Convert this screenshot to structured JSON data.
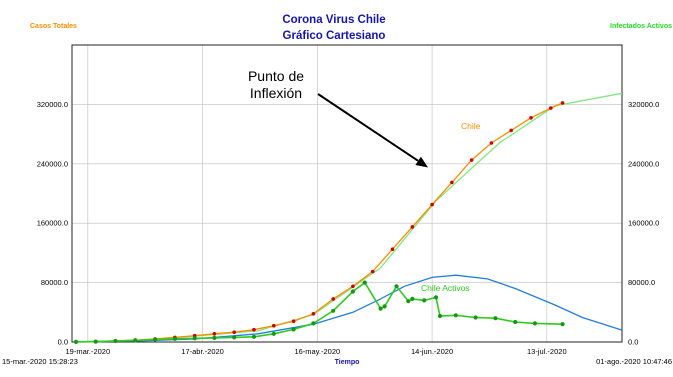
{
  "chart_data": {
    "type": "line",
    "title": "Corona Virus Chile",
    "subtitle": "Gráfico Cartesiano",
    "left_axis_label": "Casos Totales",
    "right_axis_label": "Infectados Activos",
    "xlabel": "Tiempo",
    "start_stamp": "15-mar.-2020 15:28:23",
    "end_stamp": "01-ago.-2020 10:47:46",
    "x_range": [
      "2020-03-15",
      "2020-08-01"
    ],
    "ylim": [
      0,
      400000
    ],
    "y_ticks": [
      0,
      80000,
      160000,
      240000,
      320000
    ],
    "y_tick_labels": [
      "0.0",
      "80000.0",
      "160000.0",
      "240000.0",
      "320000.0"
    ],
    "x_ticks": [
      "2020-03-19",
      "2020-04-17",
      "2020-05-16",
      "2020-06-14",
      "2020-07-13"
    ],
    "x_tick_labels": [
      "19-mar.-2020",
      "17-abr.-2020",
      "16-may.-2020",
      "14-jun.-2020",
      "13-jul.-2020"
    ],
    "grid": true,
    "annotation": {
      "text_lines": [
        "Punto de",
        "Inflexión"
      ],
      "arrow_target": {
        "date": "2020-06-13",
        "value": 235000
      }
    },
    "series": [
      {
        "name": "Chile",
        "color": "#ff8c00",
        "marker_color": "#d20000",
        "dates": [
          "2020-03-16",
          "2020-03-21",
          "2020-03-26",
          "2020-03-31",
          "2020-04-05",
          "2020-04-10",
          "2020-04-15",
          "2020-04-20",
          "2020-04-25",
          "2020-04-30",
          "2020-05-05",
          "2020-05-10",
          "2020-05-15",
          "2020-05-20",
          "2020-05-25",
          "2020-05-30",
          "2020-06-04",
          "2020-06-09",
          "2020-06-14",
          "2020-06-19",
          "2020-06-24",
          "2020-06-29",
          "2020-07-04",
          "2020-07-09",
          "2020-07-14",
          "2020-07-17"
        ],
        "values": [
          200,
          500,
          1500,
          2600,
          4200,
          6200,
          8500,
          11000,
          13200,
          16500,
          22000,
          28000,
          38000,
          58000,
          75000,
          95000,
          125000,
          155000,
          185000,
          215000,
          245000,
          268000,
          285000,
          302000,
          315000,
          322000
        ]
      },
      {
        "name": "",
        "color": "#7fe87f",
        "dates": [
          "2020-03-16",
          "2020-04-01",
          "2020-04-15",
          "2020-05-01",
          "2020-05-15",
          "2020-06-01",
          "2020-06-15",
          "2020-07-01",
          "2020-07-15",
          "2020-08-01"
        ],
        "values": [
          200,
          2500,
          8000,
          15000,
          37000,
          100000,
          190000,
          268000,
          318000,
          335000
        ]
      },
      {
        "name": "",
        "color": "#1f7fe0",
        "dates": [
          "2020-03-16",
          "2020-04-01",
          "2020-04-15",
          "2020-05-01",
          "2020-05-15",
          "2020-05-25",
          "2020-06-01",
          "2020-06-07",
          "2020-06-14",
          "2020-06-20",
          "2020-06-28",
          "2020-07-05",
          "2020-07-15",
          "2020-07-22",
          "2020-08-01"
        ],
        "values": [
          200,
          1500,
          4000,
          11000,
          24000,
          40000,
          58000,
          75000,
          87000,
          90000,
          85000,
          72000,
          50000,
          33000,
          16000
        ]
      },
      {
        "name": "Chile Activos",
        "color": "#2ecc1a",
        "marker_color": "#139a13",
        "dates": [
          "2020-03-16",
          "2020-03-21",
          "2020-03-26",
          "2020-03-31",
          "2020-04-05",
          "2020-04-10",
          "2020-04-15",
          "2020-04-20",
          "2020-04-25",
          "2020-04-30",
          "2020-05-05",
          "2020-05-10",
          "2020-05-15",
          "2020-05-20",
          "2020-05-25",
          "2020-05-28",
          "2020-06-01",
          "2020-06-02",
          "2020-06-05",
          "2020-06-08",
          "2020-06-09",
          "2020-06-12",
          "2020-06-15",
          "2020-06-16",
          "2020-06-20",
          "2020-06-25",
          "2020-06-30",
          "2020-07-05",
          "2020-07-10",
          "2020-07-17"
        ],
        "values": [
          200,
          500,
          1300,
          2200,
          3300,
          4300,
          5000,
          5500,
          6200,
          7000,
          11000,
          17000,
          25000,
          42000,
          68000,
          80000,
          45000,
          48000,
          75000,
          55000,
          58000,
          56000,
          60000,
          35000,
          36000,
          33000,
          32000,
          27000,
          25000,
          24000
        ]
      }
    ]
  }
}
